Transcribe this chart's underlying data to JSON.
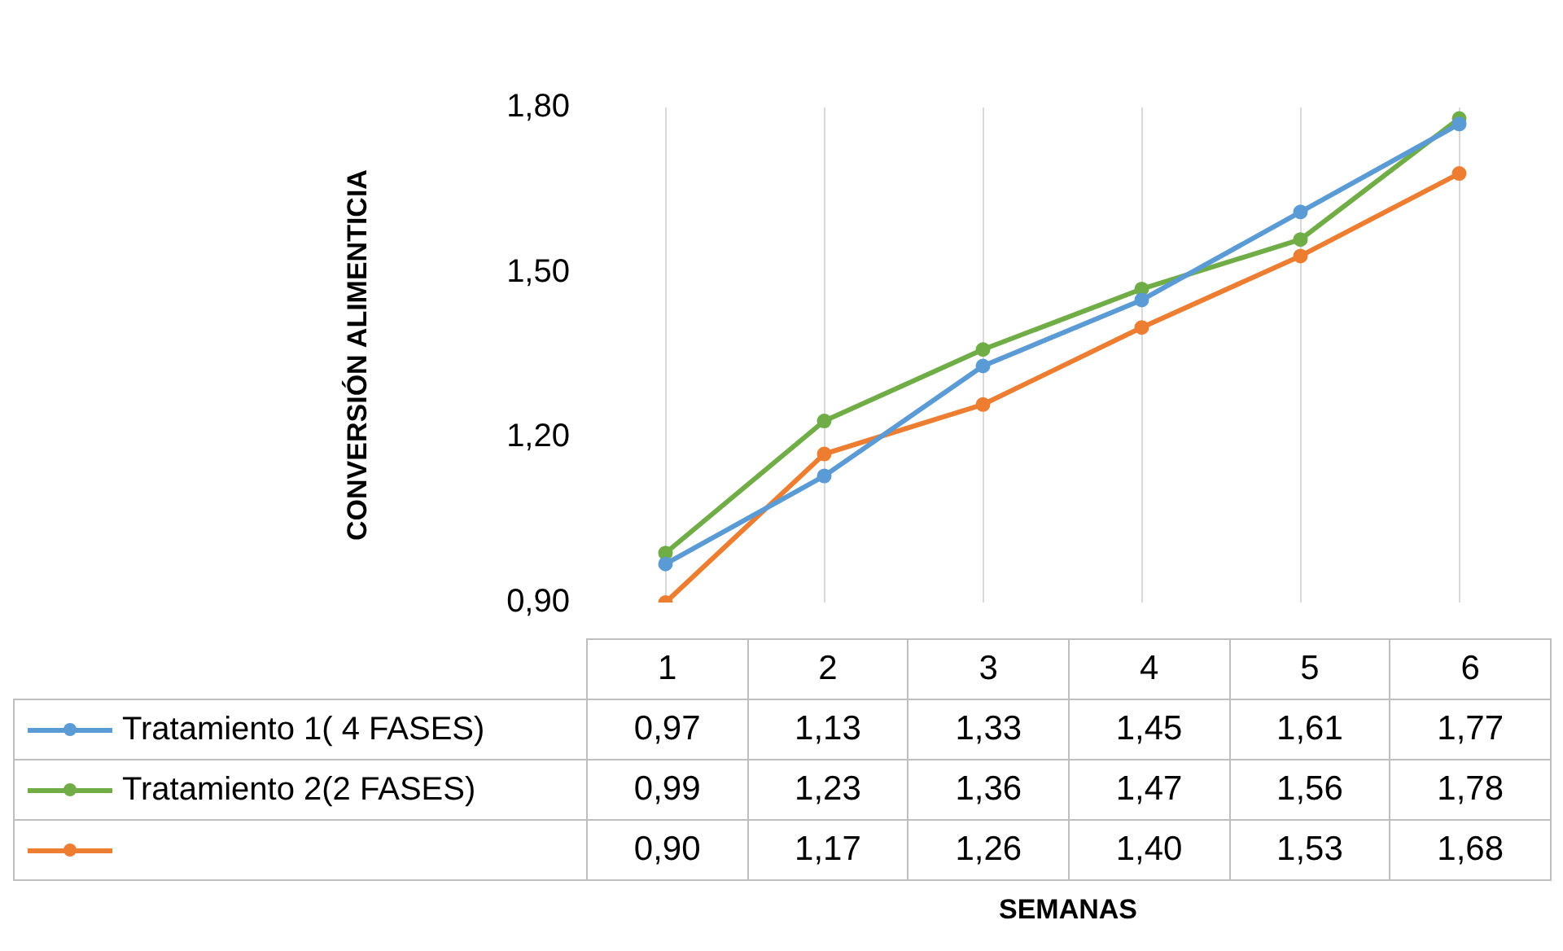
{
  "chart_data": {
    "type": "line",
    "ylabel": "CONVERSIÓN ALIMENTICIA",
    "annotations": [
      "SEMANAS"
    ],
    "categories": [
      "1",
      "2",
      "3",
      "4",
      "5",
      "6"
    ],
    "series": [
      {
        "name": "Tratamiento 1( 4 FASES)",
        "color": "#5b9bd5",
        "values": [
          0.97,
          1.13,
          1.33,
          1.45,
          1.61,
          1.77
        ],
        "value_labels": [
          "0,97",
          "1,13",
          "1,33",
          "1,45",
          "1,61",
          "1,77"
        ]
      },
      {
        "name": "Tratamiento 2(2 FASES)",
        "color": "#70ad47",
        "values": [
          0.99,
          1.23,
          1.36,
          1.47,
          1.56,
          1.78
        ],
        "value_labels": [
          "0,99",
          "1,23",
          "1,36",
          "1,47",
          "1,56",
          "1,78"
        ]
      },
      {
        "color": "#ed7d31",
        "values": [
          0.9,
          1.17,
          1.26,
          1.4,
          1.53,
          1.68
        ],
        "value_labels": [
          "0,90",
          "1,17",
          "1,26",
          "1,40",
          "1,53",
          "1,68"
        ]
      }
    ],
    "ylim": [
      0.9,
      1.8
    ],
    "yticks": [
      {
        "value": 0.9,
        "label": "0,90"
      },
      {
        "value": 1.2,
        "label": "1,20"
      },
      {
        "value": 1.5,
        "label": "1,50"
      },
      {
        "value": 1.8,
        "label": "1,80"
      }
    ],
    "grid": "x",
    "marker": "circle",
    "line_style": "solid",
    "legend": "bottom"
  }
}
